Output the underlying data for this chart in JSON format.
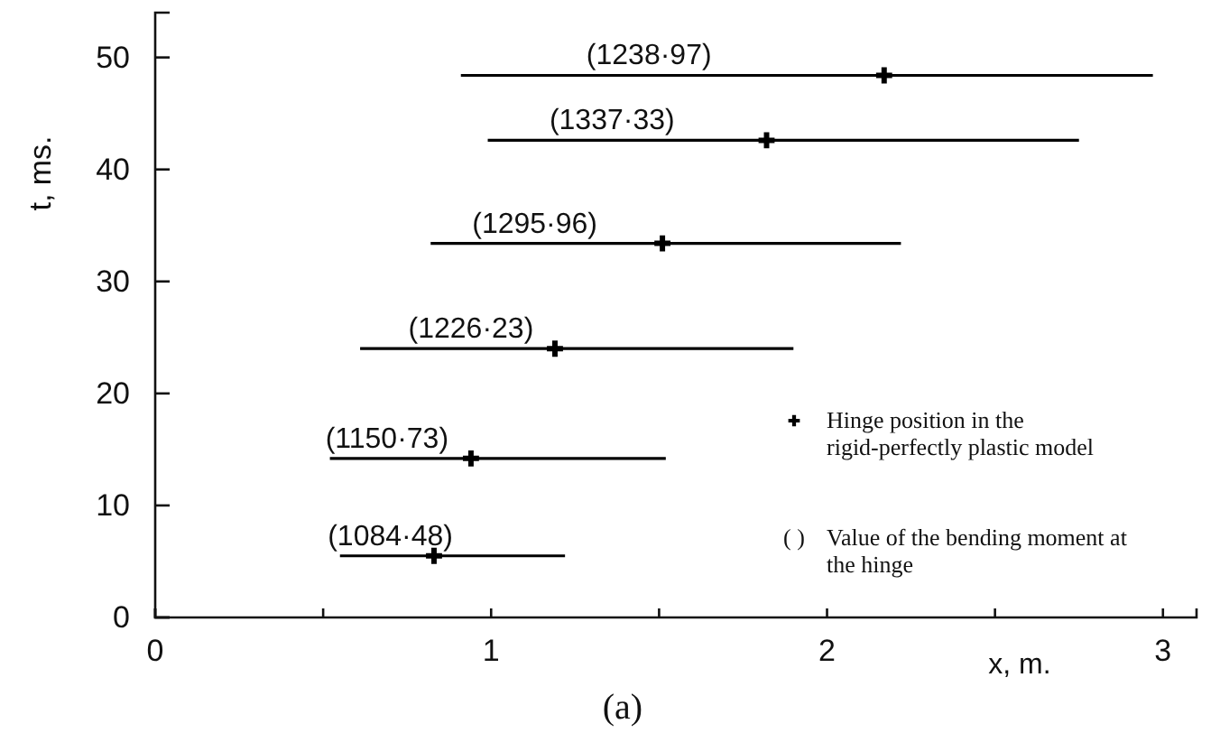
{
  "chart_data": {
    "type": "line",
    "xlabel": "x, m.",
    "ylabel": "t, ms.",
    "xlim": [
      0,
      3.1
    ],
    "ylim": [
      0,
      54
    ],
    "xticks": [
      0,
      {
        "value": 0.5,
        "label": null
      },
      1,
      {
        "value": 1.5,
        "label": null
      },
      2,
      {
        "value": 2.5,
        "label": null
      },
      3
    ],
    "yticks": [
      0,
      10,
      20,
      30,
      40,
      50
    ],
    "grid": false,
    "legend": "bottom right",
    "line_style": "solid",
    "series": [
      {
        "color": "#000000",
        "x": [
          0.91,
          2.97
        ],
        "values": [
          48.4,
          48.4
        ]
      },
      {
        "color": "#000000",
        "x": [
          0.99,
          2.75
        ],
        "values": [
          42.6,
          42.6
        ]
      },
      {
        "color": "#000000",
        "x": [
          0.82,
          2.22
        ],
        "values": [
          33.4,
          33.4
        ]
      },
      {
        "color": "#000000",
        "x": [
          0.61,
          1.9
        ],
        "values": [
          24.0,
          24.0
        ]
      },
      {
        "color": "#000000",
        "x": [
          0.52,
          1.52
        ],
        "values": [
          14.2,
          14.2
        ]
      },
      {
        "color": "#000000",
        "x": [
          0.55,
          1.22
        ],
        "values": [
          5.5,
          5.5
        ]
      },
      {
        "type": "scatter",
        "name": "Hinge position in the rigid-perfectly plastic model",
        "color": "#000000",
        "marker": "cross",
        "x": [
          2.17,
          1.82,
          1.51,
          1.19,
          0.94,
          0.83
        ],
        "values": [
          48.4,
          42.6,
          33.4,
          24.0,
          14.2,
          5.5
        ]
      }
    ],
    "annotations": [
      {
        "text": "(1238·97)",
        "x": 1.47,
        "y": 48.4
      },
      {
        "text": "(1337·33)",
        "x": 1.36,
        "y": 42.6
      },
      {
        "text": "(1295·96)",
        "x": 1.13,
        "y": 33.4
      },
      {
        "text": "(1226·23)",
        "x": 0.94,
        "y": 24.0
      },
      {
        "text": "(1150·73)",
        "x": 0.69,
        "y": 14.2
      },
      {
        "text": "(1084·48)",
        "x": 0.7,
        "y": 5.5
      },
      "( )",
      "Value of the bending moment at the hinge",
      "(a)"
    ]
  }
}
